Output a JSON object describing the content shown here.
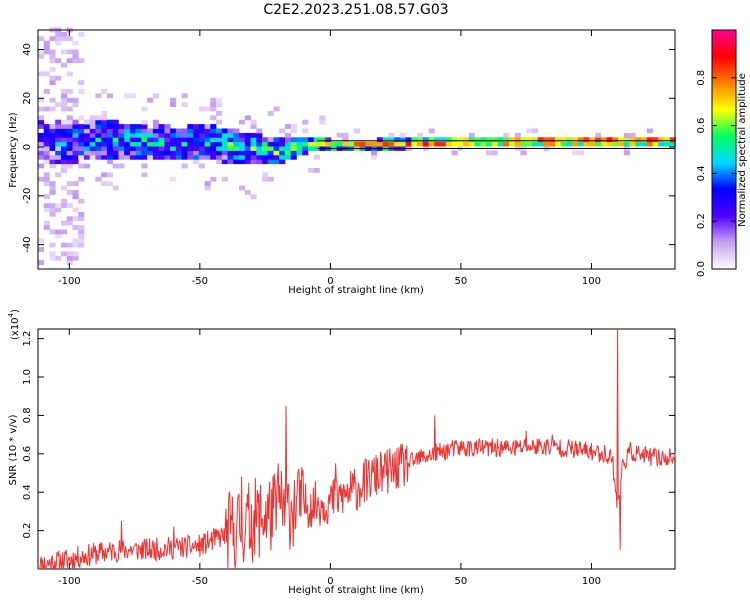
{
  "title": "C2E2.2023.251.08.57.G03",
  "colors": {
    "snr_line": "#ee3333"
  },
  "chart_data": [
    {
      "type": "heatmap",
      "xlabel": "Height of straight line (km)",
      "ylabel": "Frequency (Hz)",
      "xlim": [
        -112,
        132
      ],
      "ylim": [
        -50,
        48
      ],
      "xticks": [
        {
          "value": -100,
          "label": "-100"
        },
        {
          "value": -50,
          "label": "-50"
        },
        {
          "value": 0,
          "label": "0"
        },
        {
          "value": 50,
          "label": "50"
        },
        {
          "value": 100,
          "label": "100"
        }
      ],
      "yticks": [
        {
          "value": -40,
          "label": "-40"
        },
        {
          "value": -20,
          "label": "-20"
        },
        {
          "value": 0,
          "label": "0"
        },
        {
          "value": 20,
          "label": "20"
        },
        {
          "value": 40,
          "label": "40"
        }
      ],
      "colorbar": {
        "label": "Normalized spectral amplitude",
        "range": [
          0,
          1
        ],
        "ticks": [
          {
            "value": 0.0,
            "label": "0.0"
          },
          {
            "value": 0.2,
            "label": "0.2"
          },
          {
            "value": 0.4,
            "label": "0.4"
          },
          {
            "value": 0.6,
            "label": "0.6"
          },
          {
            "value": 0.8,
            "label": "0.8"
          }
        ],
        "colormap": [
          "#ffffff",
          "#c8a0f0",
          "#5000ff",
          "#0000ff",
          "#00d8ff",
          "#00ff60",
          "#ffff00",
          "#ff8000",
          "#ff0000",
          "#ff0090"
        ]
      },
      "band_profile": {
        "x": [
          -112,
          -100,
          -90,
          -80,
          -70,
          -60,
          -50,
          -40,
          -30,
          -20,
          -15,
          -10,
          -5,
          0,
          10,
          20,
          30,
          40,
          60,
          80,
          100,
          110,
          120,
          132
        ],
        "center": [
          1,
          1.5,
          2,
          2,
          1,
          0.5,
          1,
          0,
          -2,
          -3,
          -1,
          0,
          0.5,
          0,
          0,
          0.3,
          0.7,
          1,
          1.3,
          1.5,
          1.5,
          1.5,
          1.5,
          1.5
        ],
        "halfwidth": [
          9,
          8.5,
          8,
          7.5,
          7,
          7,
          7,
          7,
          6.5,
          5.5,
          4,
          3,
          2.5,
          2,
          2,
          2,
          2,
          2,
          2,
          2,
          2,
          2,
          2,
          2
        ],
        "intensity": [
          0.25,
          0.35,
          0.4,
          0.42,
          0.42,
          0.42,
          0.45,
          0.48,
          0.5,
          0.55,
          0.6,
          0.65,
          0.72,
          0.78,
          0.8,
          0.82,
          0.85,
          0.88,
          0.9,
          0.92,
          0.92,
          0.92,
          0.92,
          0.92
        ]
      }
    },
    {
      "type": "line",
      "xlabel": "Height of straight line (km)",
      "ylabel": "SNR (10 * v/v)",
      "y_multiplier_label": "(x10",
      "y_multiplier_exponent": "4",
      "y_multiplier_close": ")",
      "xlim": [
        -112,
        132
      ],
      "ylim": [
        0,
        1.25
      ],
      "xticks": [
        {
          "value": -100,
          "label": "-100"
        },
        {
          "value": -50,
          "label": "-50"
        },
        {
          "value": 0,
          "label": "0"
        },
        {
          "value": 50,
          "label": "50"
        },
        {
          "value": 100,
          "label": "100"
        }
      ],
      "yticks": [
        {
          "value": 0.2,
          "label": "0.2"
        },
        {
          "value": 0.4,
          "label": "0.4"
        },
        {
          "value": 0.6,
          "label": "0.6"
        },
        {
          "value": 0.8,
          "label": "0.8"
        },
        {
          "value": 1.0,
          "label": "1.0"
        },
        {
          "value": 1.2,
          "label": "1.2"
        }
      ],
      "series": [
        {
          "x": [
            -112,
            -100,
            -90,
            -80,
            -70,
            -60,
            -50,
            -45,
            -40,
            -35,
            -30,
            -25,
            -20,
            -15,
            -10,
            -5,
            0,
            5,
            10,
            15,
            20,
            25,
            30,
            35,
            40,
            45,
            50,
            60,
            70,
            80,
            90,
            100,
            105,
            108,
            110,
            112,
            115,
            120,
            125,
            132
          ],
          "y": [
            0.02,
            0.05,
            0.08,
            0.1,
            0.1,
            0.11,
            0.12,
            0.15,
            0.18,
            0.22,
            0.25,
            0.28,
            0.3,
            0.32,
            0.33,
            0.34,
            0.35,
            0.38,
            0.42,
            0.47,
            0.5,
            0.52,
            0.55,
            0.58,
            0.6,
            0.62,
            0.63,
            0.63,
            0.63,
            0.64,
            0.63,
            0.61,
            0.6,
            0.58,
            0.32,
            0.55,
            0.61,
            0.59,
            0.58,
            0.58
          ],
          "spikes": [
            {
              "x": -80,
              "y": 0.25
            },
            {
              "x": -60,
              "y": 0.22
            },
            {
              "x": -34,
              "y": 0.48
            },
            {
              "x": -20,
              "y": 0.55
            },
            {
              "x": -17,
              "y": 0.85
            },
            {
              "x": -12,
              "y": 0.5
            },
            {
              "x": 2,
              "y": 0.55
            },
            {
              "x": 40,
              "y": 0.8
            },
            {
              "x": 75,
              "y": 0.72
            },
            {
              "x": 85,
              "y": 0.7
            },
            {
              "x": 110,
              "y": 1.25
            },
            {
              "x": 111,
              "y": 0.1
            }
          ]
        }
      ]
    }
  ]
}
